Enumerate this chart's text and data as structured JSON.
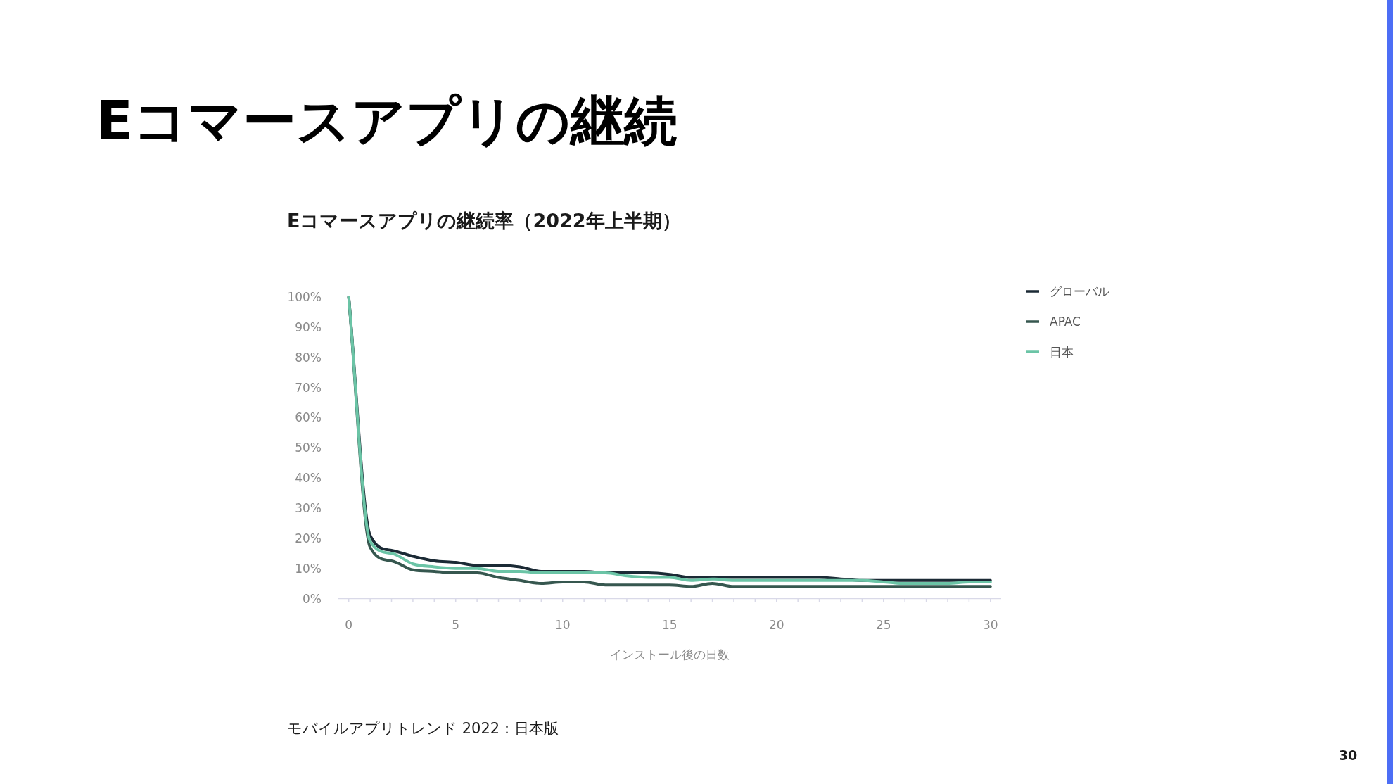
{
  "chart_data": {
    "type": "line",
    "title": "Eコマースアプリの継続",
    "subtitle": "Eコマースアプリの継続率（2022年上半期）",
    "xlabel": "インストール後の日数",
    "x": [
      0,
      1,
      2,
      3,
      4,
      5,
      6,
      7,
      8,
      9,
      10,
      11,
      12,
      13,
      14,
      15,
      16,
      17,
      18,
      19,
      20,
      21,
      22,
      23,
      24,
      25,
      26,
      27,
      28,
      29,
      30
    ],
    "series": [
      {
        "name": "グローバル",
        "color": "#1b2a35",
        "values": [
          100,
          21,
          16,
          14,
          12.5,
          12,
          11,
          11,
          10.5,
          9,
          9,
          9,
          8.5,
          8.5,
          8.5,
          8,
          7,
          7,
          7,
          7,
          7,
          7,
          7,
          6.5,
          6,
          6,
          6,
          6,
          6,
          6,
          6
        ]
      },
      {
        "name": "APAC",
        "color": "#36574f",
        "values": [
          100,
          17,
          12.5,
          9.5,
          9,
          8.5,
          8.5,
          7,
          6,
          5,
          5.5,
          5.5,
          4.5,
          4.5,
          4.5,
          4.5,
          4,
          5,
          4,
          4,
          4,
          4,
          4,
          4,
          4,
          4,
          4,
          4,
          4,
          4,
          4
        ]
      },
      {
        "name": "日本",
        "color": "#6bc4a6",
        "values": [
          100,
          19,
          15,
          11.5,
          10.5,
          10,
          10,
          9,
          9,
          8.5,
          8.5,
          8.5,
          8.5,
          7.5,
          7,
          7,
          6,
          6.5,
          6,
          6,
          6,
          6,
          6,
          6,
          6,
          5.5,
          5,
          5,
          5,
          5.5,
          5.5
        ]
      }
    ],
    "xlim": [
      -0.5,
      30.5
    ],
    "xticks": [
      0,
      {
        "value": 1,
        "label": null
      },
      {
        "value": 2,
        "label": null
      },
      {
        "value": 3,
        "label": null
      },
      {
        "value": 4,
        "label": null
      },
      5,
      {
        "value": 6,
        "label": null
      },
      {
        "value": 7,
        "label": null
      },
      {
        "value": 8,
        "label": null
      },
      {
        "value": 9,
        "label": null
      },
      10,
      {
        "value": 11,
        "label": null
      },
      {
        "value": 12,
        "label": null
      },
      {
        "value": 13,
        "label": null
      },
      {
        "value": 14,
        "label": null
      },
      15,
      {
        "value": 16,
        "label": null
      },
      {
        "value": 17,
        "label": null
      },
      {
        "value": 18,
        "label": null
      },
      {
        "value": 19,
        "label": null
      },
      20,
      {
        "value": 21,
        "label": null
      },
      {
        "value": 22,
        "label": null
      },
      {
        "value": 23,
        "label": null
      },
      {
        "value": 24,
        "label": null
      },
      25,
      {
        "value": 26,
        "label": null
      },
      {
        "value": 27,
        "label": null
      },
      {
        "value": 28,
        "label": null
      },
      {
        "value": 29,
        "label": null
      },
      30
    ],
    "ylim": [
      0,
      100
    ],
    "yticks": [
      {
        "value": 0,
        "label": "0%"
      },
      {
        "value": 10,
        "label": "10%"
      },
      {
        "value": 20,
        "label": "20%"
      },
      {
        "value": 30,
        "label": "30%"
      },
      {
        "value": 40,
        "label": "40%"
      },
      {
        "value": 50,
        "label": "50%"
      },
      {
        "value": 60,
        "label": "60%"
      },
      {
        "value": 70,
        "label": "70%"
      },
      {
        "value": 80,
        "label": "80%"
      },
      {
        "value": 90,
        "label": "90%"
      },
      {
        "value": 100,
        "label": "100%"
      }
    ],
    "legend": "top right",
    "line_style": "solid",
    "annotations": [
      "モバイルアプリトレンド 2022：日本版",
      "30"
    ]
  }
}
